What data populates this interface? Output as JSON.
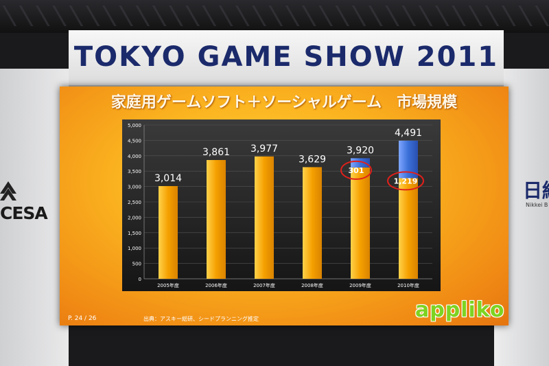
{
  "banner": {
    "title": "TOKYO GAME SHOW 2011"
  },
  "booth": {
    "left_logo": "CESA",
    "right_logo": "日経",
    "right_sub": "Nikkei B"
  },
  "slide": {
    "title": "家庭用ゲームソフト＋ソーシャルゲーム　市場規模",
    "page": "P. 24 / 26",
    "source": "出典：アスキー総研、シードプランニング推定",
    "brand": "appliko"
  },
  "colors": {
    "bar_base": "#f5a000",
    "bar_social": "#3a6fd8",
    "circle": "#e0201b",
    "label": "#ffffff"
  },
  "chart_data": {
    "type": "bar",
    "categories": [
      "2005年度",
      "2006年度",
      "2007年度",
      "2008年度",
      "2009年度",
      "2010年度"
    ],
    "series": [
      {
        "values": [
          3014,
          3861,
          3977,
          3629,
          3619,
          3272
        ]
      },
      {
        "values": [
          0,
          0,
          0,
          0,
          301,
          1219
        ]
      }
    ],
    "totals": [
      "3,014",
      "3,861",
      "3,977",
      "3,629",
      "3,920",
      "4,491"
    ],
    "social_labels": [
      "",
      "",
      "",
      "",
      "301",
      "1,219"
    ],
    "yticks": [
      "0",
      "500",
      "1,000",
      "1,500",
      "2,000",
      "2,500",
      "3,000",
      "3,500",
      "4,000",
      "4,500",
      "5,000"
    ],
    "ylim": [
      0,
      5000
    ],
    "stacked": true,
    "legend": "none"
  }
}
